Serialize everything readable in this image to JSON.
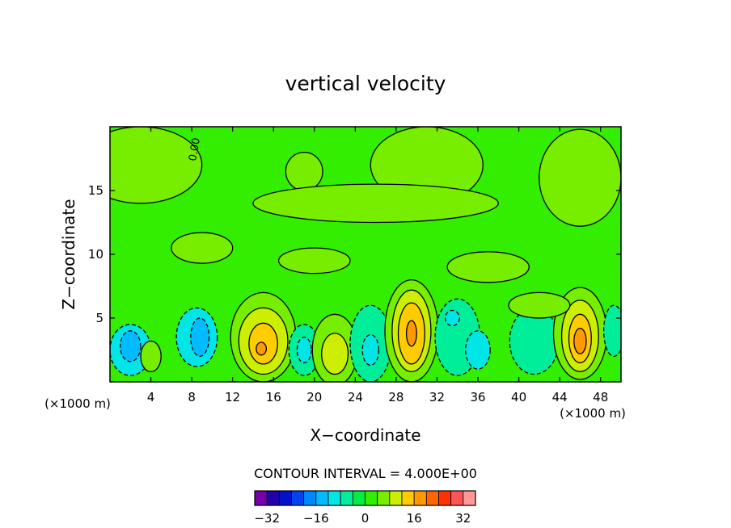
{
  "chart_data": {
    "type": "heatmap",
    "title": "vertical velocity",
    "xlabel": "X−coordinate",
    "ylabel": "Z−coordinate",
    "x_units_left": "(×1000 m)",
    "x_units_right": "(×1000 m)",
    "xlim": [
      0,
      50
    ],
    "ylim": [
      0,
      20
    ],
    "x_ticks": [
      4,
      8,
      12,
      16,
      20,
      24,
      28,
      32,
      36,
      40,
      44,
      48
    ],
    "y_ticks": [
      5,
      10,
      15
    ],
    "contour_label": "0.00",
    "contour_interval_text": "CONTOUR INTERVAL = 4.000E+00",
    "legend_ticks": [
      "−32",
      "−16",
      "0",
      "16",
      "32"
    ],
    "legend_tick_values": [
      -32,
      -16,
      0,
      16,
      32
    ],
    "legend_colors": [
      "#7700aa",
      "#2200aa",
      "#0011cc",
      "#0044ee",
      "#0088ff",
      "#00bbff",
      "#00e6e6",
      "#00ee99",
      "#00ee44",
      "#33ee00",
      "#77ee00",
      "#ccee00",
      "#ffcc00",
      "#ff9900",
      "#ff6600",
      "#ff3300",
      "#ff5555",
      "#ff9999"
    ],
    "legend_min": -36,
    "legend_max": 36,
    "background_level": 0,
    "cells": [
      {
        "x": 2,
        "z": 2.5,
        "rx": 2.0,
        "rz": 2.0,
        "w": -8
      },
      {
        "x": 2,
        "z": 2.8,
        "rx": 1.0,
        "rz": 1.2,
        "w": -12
      },
      {
        "x": 8.5,
        "z": 3.5,
        "rx": 2.0,
        "rz": 2.3,
        "w": -8
      },
      {
        "x": 8.8,
        "z": 3.5,
        "rx": 0.9,
        "rz": 1.5,
        "w": -12
      },
      {
        "x": 4,
        "z": 2.0,
        "rx": 1.0,
        "rz": 1.2,
        "w": 4
      },
      {
        "x": 15,
        "z": 3.5,
        "rx": 3.2,
        "rz": 3.5,
        "w": 4
      },
      {
        "x": 15,
        "z": 3.2,
        "rx": 2.4,
        "rz": 2.6,
        "w": 8
      },
      {
        "x": 15,
        "z": 3.0,
        "rx": 1.4,
        "rz": 1.6,
        "w": 12
      },
      {
        "x": 14.8,
        "z": 2.6,
        "rx": 0.5,
        "rz": 0.5,
        "w": 16
      },
      {
        "x": 19,
        "z": 2.5,
        "rx": 1.5,
        "rz": 2.0,
        "w": -4
      },
      {
        "x": 19,
        "z": 2.5,
        "rx": 0.7,
        "rz": 1.0,
        "w": -8
      },
      {
        "x": 22,
        "z": 2.5,
        "rx": 2.2,
        "rz": 2.8,
        "w": 4
      },
      {
        "x": 22,
        "z": 2.2,
        "rx": 1.3,
        "rz": 1.6,
        "w": 8
      },
      {
        "x": 25.5,
        "z": 3.0,
        "rx": 2.0,
        "rz": 3.0,
        "w": -4
      },
      {
        "x": 25.5,
        "z": 2.5,
        "rx": 0.8,
        "rz": 1.2,
        "w": -8
      },
      {
        "x": 29.5,
        "z": 4.0,
        "rx": 2.6,
        "rz": 4.0,
        "w": 4
      },
      {
        "x": 29.5,
        "z": 4.0,
        "rx": 1.9,
        "rz": 3.2,
        "w": 8
      },
      {
        "x": 29.5,
        "z": 3.8,
        "rx": 1.3,
        "rz": 2.4,
        "w": 12
      },
      {
        "x": 29.5,
        "z": 3.8,
        "rx": 0.5,
        "rz": 1.0,
        "w": 16
      },
      {
        "x": 34,
        "z": 3.5,
        "rx": 2.2,
        "rz": 3.0,
        "w": -4
      },
      {
        "x": 33.5,
        "z": 5.0,
        "rx": 0.7,
        "rz": 0.6,
        "w": -8
      },
      {
        "x": 36,
        "z": 2.5,
        "rx": 1.2,
        "rz": 1.5,
        "w": -8
      },
      {
        "x": 41.5,
        "z": 3.2,
        "rx": 2.4,
        "rz": 2.6,
        "w": -4
      },
      {
        "x": 46,
        "z": 3.8,
        "rx": 2.6,
        "rz": 3.6,
        "w": 4
      },
      {
        "x": 46,
        "z": 3.6,
        "rx": 1.8,
        "rz": 2.8,
        "w": 8
      },
      {
        "x": 46,
        "z": 3.4,
        "rx": 1.1,
        "rz": 1.9,
        "w": 12
      },
      {
        "x": 46,
        "z": 3.2,
        "rx": 0.6,
        "rz": 1.0,
        "w": 16
      },
      {
        "x": 49.3,
        "z": 4.0,
        "rx": 1.0,
        "rz": 2.0,
        "w": -4
      },
      {
        "x": 3,
        "z": 17,
        "rx": 6.0,
        "rz": 3.0,
        "w": 4
      },
      {
        "x": 19,
        "z": 16.5,
        "rx": 1.8,
        "rz": 1.5,
        "w": 4
      },
      {
        "x": 31,
        "z": 17,
        "rx": 5.5,
        "rz": 3.0,
        "w": 4
      },
      {
        "x": 46,
        "z": 16,
        "rx": 4.0,
        "rz": 3.8,
        "w": 4
      },
      {
        "x": 26,
        "z": 14,
        "rx": 12.0,
        "rz": 1.5,
        "w": 4
      },
      {
        "x": 9,
        "z": 10.5,
        "rx": 3.0,
        "rz": 1.2,
        "w": 4
      },
      {
        "x": 20,
        "z": 9.5,
        "rx": 3.5,
        "rz": 1.0,
        "w": 4
      },
      {
        "x": 37,
        "z": 9.0,
        "rx": 4.0,
        "rz": 1.2,
        "w": 4
      },
      {
        "x": 42,
        "z": 6.0,
        "rx": 3.0,
        "rz": 1.0,
        "w": 4
      }
    ]
  }
}
